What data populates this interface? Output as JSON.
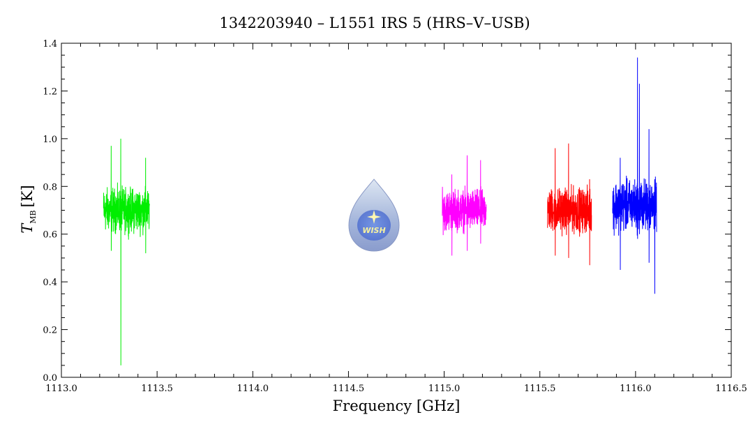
{
  "chart_data": {
    "type": "line",
    "title": "1342203940 – L1551 IRS 5 (HRS–V–USB)",
    "xlabel": "Frequency [GHz]",
    "ylabel_main": "T",
    "ylabel_sub": "MB",
    "ylabel_unit": "[K]",
    "xlim": [
      1113.0,
      1116.5
    ],
    "ylim": [
      0.0,
      1.4
    ],
    "x_ticks": [
      1113.0,
      1113.5,
      1114.0,
      1114.5,
      1115.0,
      1115.5,
      1116.0,
      1116.5
    ],
    "x_tick_labels": [
      "1113.0",
      "1113.5",
      "1114.0",
      "1114.5",
      "1115.0",
      "1115.5",
      "1116.0",
      "1116.5"
    ],
    "y_ticks": [
      0.0,
      0.2,
      0.4,
      0.6,
      0.8,
      1.0,
      1.2,
      1.4
    ],
    "y_tick_labels": [
      "0.0",
      "0.2",
      "0.4",
      "0.6",
      "0.8",
      "1.0",
      "1.2",
      "1.4"
    ],
    "grid": false,
    "series": [
      {
        "color": "#00ee00",
        "x_start": 1113.22,
        "x_end": 1113.46,
        "center": 0.7,
        "noise_amplitude": 0.13,
        "spikes": [
          {
            "x": 1113.31,
            "min": 0.05,
            "max": 1.0
          },
          {
            "x": 1113.26,
            "min": 0.53,
            "max": 0.97
          },
          {
            "x": 1113.44,
            "min": 0.52,
            "max": 0.92
          }
        ]
      },
      {
        "color": "#ff00ff",
        "x_start": 1114.99,
        "x_end": 1115.22,
        "center": 0.7,
        "noise_amplitude": 0.12,
        "spikes": [
          {
            "x": 1115.12,
            "min": 0.53,
            "max": 0.93
          },
          {
            "x": 1115.04,
            "min": 0.51,
            "max": 0.85
          },
          {
            "x": 1115.19,
            "min": 0.56,
            "max": 0.91
          }
        ]
      },
      {
        "color": "#ff0000",
        "x_start": 1115.54,
        "x_end": 1115.77,
        "center": 0.7,
        "noise_amplitude": 0.13,
        "spikes": [
          {
            "x": 1115.65,
            "min": 0.5,
            "max": 0.98
          },
          {
            "x": 1115.58,
            "min": 0.51,
            "max": 0.96
          },
          {
            "x": 1115.76,
            "min": 0.47,
            "max": 0.83
          }
        ]
      },
      {
        "color": "#0000ff",
        "x_start": 1115.88,
        "x_end": 1116.11,
        "center": 0.72,
        "noise_amplitude": 0.15,
        "spikes": [
          {
            "x": 1116.01,
            "min": 0.58,
            "max": 1.34
          },
          {
            "x": 1116.02,
            "min": 0.6,
            "max": 1.23
          },
          {
            "x": 1116.07,
            "min": 0.48,
            "max": 1.04
          },
          {
            "x": 1116.1,
            "min": 0.35,
            "max": 0.83
          },
          {
            "x": 1115.92,
            "min": 0.45,
            "max": 0.92
          }
        ]
      }
    ]
  },
  "logo": {
    "name": "WISH",
    "text": "WISH"
  }
}
